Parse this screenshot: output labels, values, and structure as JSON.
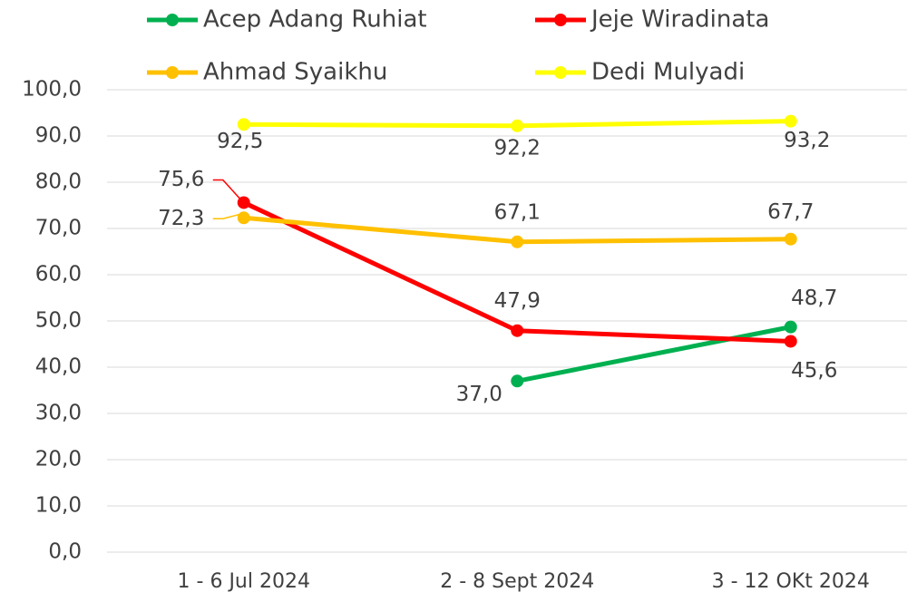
{
  "chart_data": {
    "type": "line",
    "categories": [
      "1 - 6 Jul 2024",
      "2 - 8  Sept 2024",
      "3 - 12 OKt 2024"
    ],
    "series": [
      {
        "name": "Acep Adang Ruhiat",
        "color": "#00b050",
        "values": [
          null,
          37.0,
          48.7
        ],
        "value_labels": [
          null,
          "37,0",
          "48,7"
        ]
      },
      {
        "name": "Jeje Wiradinata",
        "color": "#ff0000",
        "values": [
          75.6,
          47.9,
          45.6
        ],
        "value_labels": [
          "75,6",
          "47,9",
          "45,6"
        ]
      },
      {
        "name": "Ahmad Syaikhu",
        "color": "#ffc000",
        "values": [
          72.3,
          67.1,
          67.7
        ],
        "value_labels": [
          "72,3",
          "67,1",
          "67,7"
        ]
      },
      {
        "name": "Dedi Mulyadi",
        "color": "#ffff00",
        "values": [
          92.5,
          92.2,
          93.2
        ],
        "value_labels": [
          "92,5",
          "92,2",
          "93,2"
        ]
      }
    ],
    "ylim": [
      0,
      100
    ],
    "yticks": [
      {
        "value": 0,
        "label": "0,0"
      },
      {
        "value": 10,
        "label": "10,0"
      },
      {
        "value": 20,
        "label": "20,0"
      },
      {
        "value": 30,
        "label": "30,0"
      },
      {
        "value": 40,
        "label": "40,0"
      },
      {
        "value": 50,
        "label": "50,0"
      },
      {
        "value": 60,
        "label": "60,0"
      },
      {
        "value": 70,
        "label": "70,0"
      },
      {
        "value": 80,
        "label": "80,0"
      },
      {
        "value": 90,
        "label": "90,0"
      },
      {
        "value": 100,
        "label": "100,0"
      }
    ],
    "grid": true,
    "legend": "top"
  }
}
